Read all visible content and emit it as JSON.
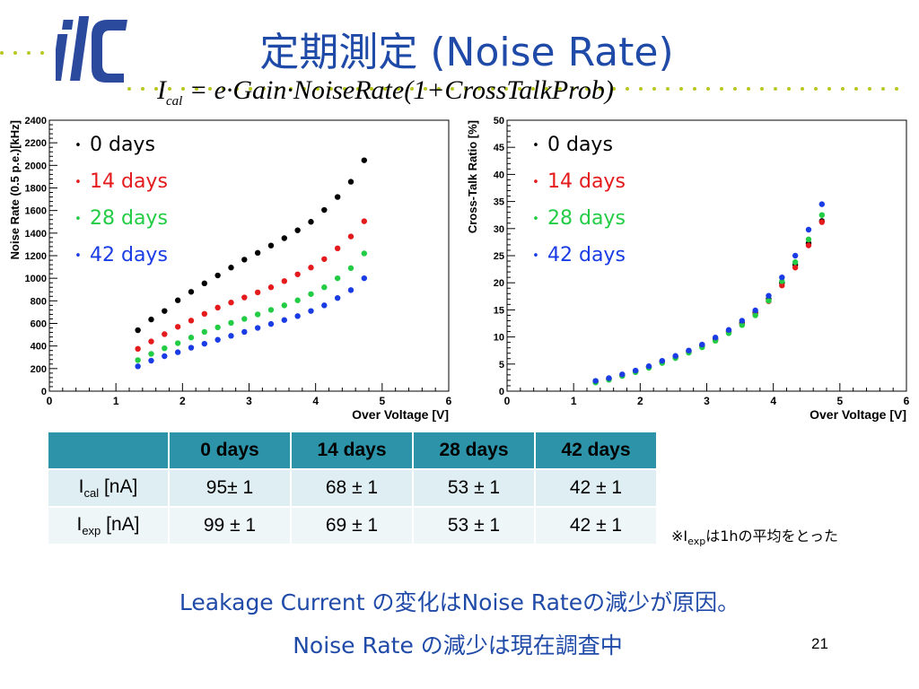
{
  "title": "定期測定 (Noise Rate)",
  "formula": {
    "lhs": "I",
    "lhs_sub": "cal",
    "rhs": " = e·Gain·NoiseRate(1+CrossTalkProb)"
  },
  "colors": {
    "title": "#1f4aa8",
    "accent_dots": "#b8c820",
    "logo": "#2b4a9e",
    "table_header": "#2d93a8",
    "series": [
      "#000000",
      "#e41a1c",
      "#22cc44",
      "#1a3ce4"
    ]
  },
  "chart_data": [
    {
      "type": "scatter",
      "xlabel": "Over Voltage [V]",
      "ylabel": "Noise Rate (0.5 p.e.)[kHz]",
      "xlim": [
        0,
        6
      ],
      "ylim": [
        0,
        2400
      ],
      "xticks": [
        0,
        1,
        2,
        3,
        4,
        5,
        6
      ],
      "yticks": [
        0,
        200,
        400,
        600,
        800,
        1000,
        1200,
        1400,
        1600,
        1800,
        2000,
        2200,
        2400
      ],
      "legend": "top-left",
      "x": [
        1.33,
        1.53,
        1.73,
        1.93,
        2.13,
        2.33,
        2.53,
        2.73,
        2.93,
        3.13,
        3.33,
        3.53,
        3.73,
        3.93,
        4.13,
        4.33,
        4.53,
        4.73
      ],
      "series": [
        {
          "name": "0 days",
          "color": "#000000",
          "values": [
            540,
            635,
            710,
            805,
            880,
            955,
            1025,
            1095,
            1165,
            1225,
            1290,
            1355,
            1425,
            1500,
            1605,
            1720,
            1855,
            2045
          ]
        },
        {
          "name": "14 days",
          "color": "#e41a1c",
          "values": [
            375,
            440,
            505,
            570,
            625,
            685,
            740,
            785,
            830,
            875,
            920,
            975,
            1035,
            1095,
            1170,
            1265,
            1370,
            1505
          ]
        },
        {
          "name": "28 days",
          "color": "#22cc44",
          "values": [
            275,
            330,
            380,
            425,
            475,
            525,
            565,
            605,
            640,
            680,
            720,
            760,
            805,
            860,
            920,
            1000,
            1090,
            1220
          ]
        },
        {
          "name": "42 days",
          "color": "#1a3ce4",
          "values": [
            220,
            270,
            310,
            345,
            385,
            420,
            455,
            490,
            525,
            560,
            595,
            630,
            665,
            710,
            760,
            825,
            895,
            1000
          ]
        }
      ]
    },
    {
      "type": "scatter",
      "xlabel": "Over Voltage [V]",
      "ylabel": "Cross-Talk  Ratio [%]",
      "xlim": [
        0,
        6
      ],
      "ylim": [
        0,
        50
      ],
      "xticks": [
        0,
        1,
        2,
        3,
        4,
        5,
        6
      ],
      "yticks": [
        0,
        5,
        10,
        15,
        20,
        25,
        30,
        35,
        40,
        45,
        50
      ],
      "legend": "top-left",
      "x": [
        1.33,
        1.53,
        1.73,
        1.93,
        2.13,
        2.33,
        2.53,
        2.73,
        2.93,
        3.13,
        3.33,
        3.53,
        3.73,
        3.93,
        4.13,
        4.33,
        4.53,
        4.73
      ],
      "series": [
        {
          "name": "0 days",
          "color": "#000000",
          "values": [
            1.8,
            2.3,
            3.0,
            3.7,
            4.5,
            5.5,
            6.4,
            7.4,
            8.4,
            9.6,
            11.0,
            12.6,
            14.5,
            17.0,
            20.0,
            23.3,
            27.3,
            31.4
          ]
        },
        {
          "name": "14 days",
          "color": "#e41a1c",
          "values": [
            1.7,
            2.2,
            2.9,
            3.6,
            4.4,
            5.3,
            6.2,
            7.2,
            8.2,
            9.4,
            10.8,
            12.3,
            14.2,
            16.6,
            19.5,
            22.8,
            26.9,
            31.2
          ]
        },
        {
          "name": "28 days",
          "color": "#22cc44",
          "values": [
            1.6,
            2.1,
            2.8,
            3.5,
            4.3,
            5.2,
            6.1,
            7.1,
            8.1,
            9.3,
            10.7,
            12.2,
            14.0,
            16.7,
            20.3,
            23.8,
            28.0,
            32.5
          ]
        },
        {
          "name": "42 days",
          "color": "#1a3ce4",
          "values": [
            1.9,
            2.4,
            3.1,
            3.8,
            4.6,
            5.6,
            6.5,
            7.5,
            8.6,
            9.9,
            11.3,
            13.0,
            14.9,
            17.6,
            21.0,
            25.0,
            29.8,
            34.5
          ]
        }
      ]
    }
  ],
  "table": {
    "headers": [
      "",
      "0 days",
      "14 days",
      "28 days",
      "42 days"
    ],
    "rows": [
      {
        "label": "I",
        "label_sub": "cal",
        "label_unit": " [nA]",
        "cells": [
          "95± 1",
          "68 ± 1",
          "53 ± 1",
          "42 ± 1"
        ]
      },
      {
        "label": "I",
        "label_sub": "exp",
        "label_unit": " [nA]",
        "cells": [
          "99 ± 1",
          "69 ± 1",
          "53 ± 1",
          "42 ± 1"
        ]
      }
    ]
  },
  "note": {
    "prefix": "※I",
    "sub": "exp",
    "suffix": "は1hの平均をとった"
  },
  "conclusion": [
    "Leakage Current の変化はNoise Rateの減少が原因。",
    "Noise Rate の減少は現在調査中"
  ],
  "page_number": "21"
}
